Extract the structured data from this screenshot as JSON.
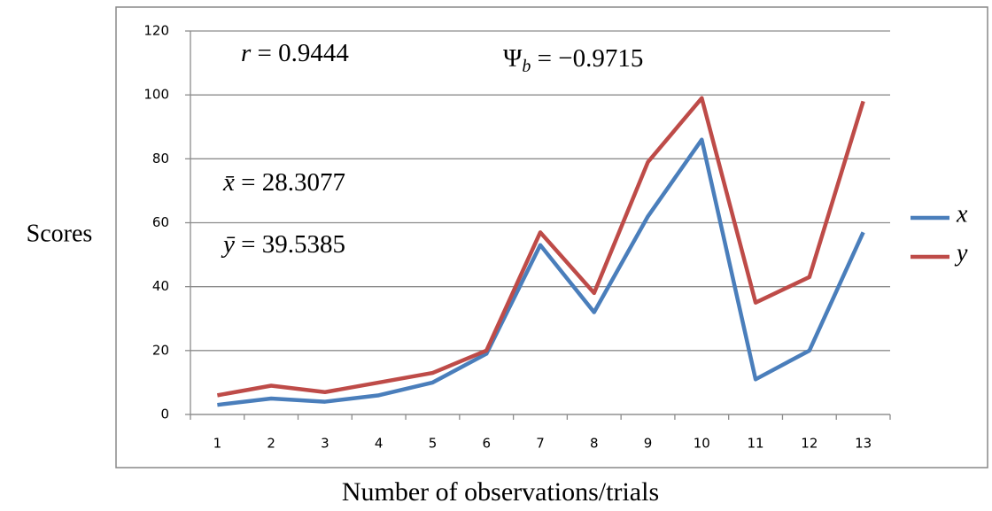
{
  "chart_data": {
    "type": "line",
    "x_label": "Number of observations/trials",
    "y_label": "Scores",
    "categories": [
      "1",
      "2",
      "3",
      "4",
      "5",
      "6",
      "7",
      "8",
      "9",
      "10",
      "11",
      "12",
      "13"
    ],
    "series": [
      {
        "name": "x",
        "color": "#4a7ebb",
        "values": [
          3,
          5,
          4,
          6,
          10,
          19,
          53,
          32,
          62,
          86,
          11,
          20,
          57
        ]
      },
      {
        "name": "y",
        "color": "#be4b48",
        "values": [
          6,
          9,
          7,
          10,
          13,
          20,
          57,
          38,
          79,
          99,
          35,
          43,
          98
        ]
      }
    ],
    "ylim": [
      0,
      120
    ],
    "yticks": [
      0,
      20,
      40,
      60,
      80,
      100,
      120
    ],
    "grid": true,
    "legend": "right",
    "annotations": [
      {
        "symbol": "r",
        "text": "= 0.9444"
      },
      {
        "symbol": "Ψ",
        "subscript": "b",
        "text": "= −0.9715"
      },
      {
        "symbol": "x̄",
        "text": "= 28.3077"
      },
      {
        "symbol": "ȳ",
        "text": "= 39.5385"
      }
    ]
  }
}
